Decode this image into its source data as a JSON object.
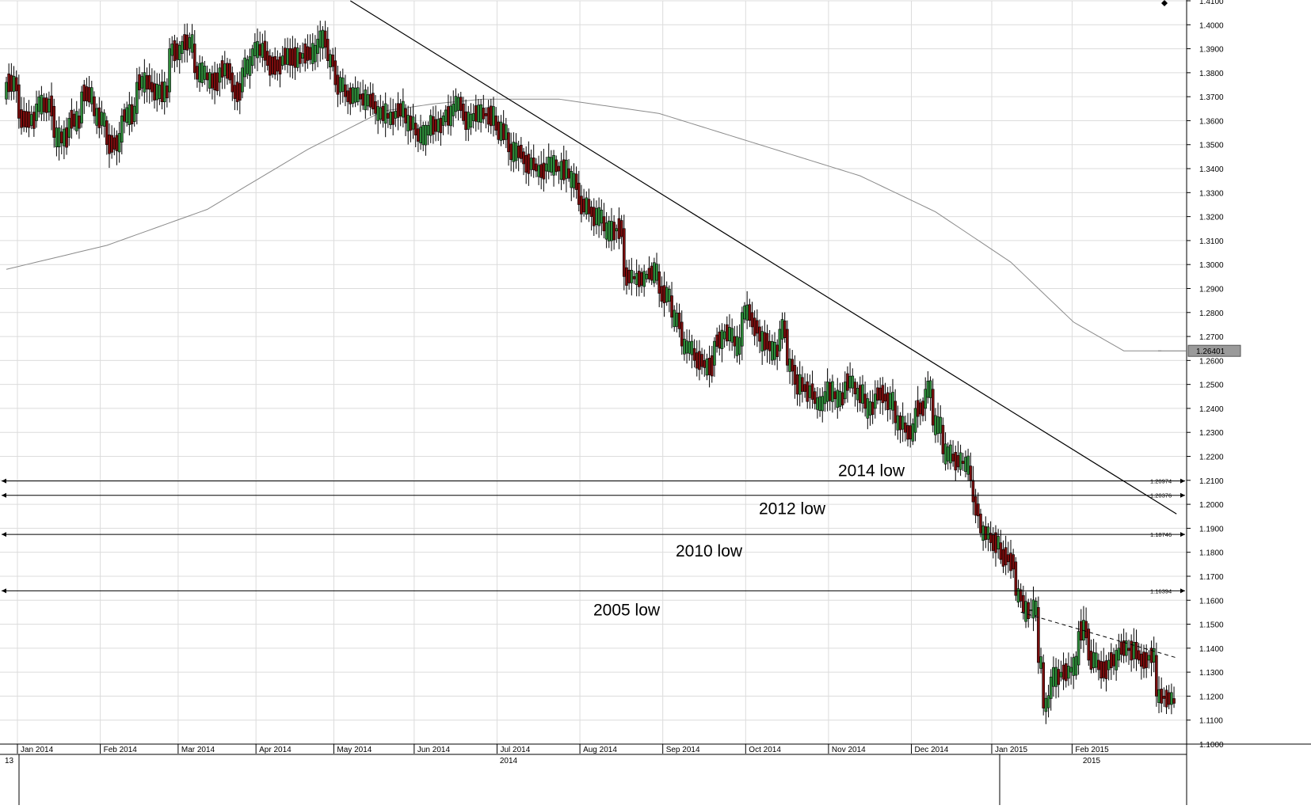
{
  "chart_data": {
    "type": "candlestick",
    "title": "",
    "xlabel": "",
    "ylabel": "",
    "ylim": [
      1.1,
      1.41
    ],
    "y_ticks": [
      1.41,
      1.4,
      1.39,
      1.38,
      1.37,
      1.36,
      1.35,
      1.34,
      1.33,
      1.32,
      1.31,
      1.3,
      1.29,
      1.28,
      1.27,
      1.26,
      1.25,
      1.24,
      1.23,
      1.22,
      1.21,
      1.2,
      1.19,
      1.18,
      1.17,
      1.16,
      1.15,
      1.14,
      1.13,
      1.12,
      1.11,
      1.1
    ],
    "y_tick_labels": [
      "1.4100",
      "1.4000",
      "1.3900",
      "1.3800",
      "1.3700",
      "1.3600",
      "1.3500",
      "1.3400",
      "1.3300",
      "1.3200",
      "1.3100",
      "1.3000",
      "1.2900",
      "1.2800",
      "1.2700",
      "1.2600",
      "1.2500",
      "1.2400",
      "1.2300",
      "1.2200",
      "1.2100",
      "1.2000",
      "1.1900",
      "1.1800",
      "1.1700",
      "1.1600",
      "1.1500",
      "1.1400",
      "1.1300",
      "1.1200",
      "1.1100",
      "1.1000"
    ],
    "x_month_labels": [
      "Jan 2014",
      "Feb 2014",
      "Mar 2014",
      "Apr 2014",
      "May 2014",
      "Jun 2014",
      "Jul 2014",
      "Aug 2014",
      "Sep 2014",
      "Oct 2014",
      "Nov 2014",
      "Dec 2014",
      "Jan 2015",
      "Feb 2015"
    ],
    "x_year_labels": [
      "13",
      "2014",
      "2015"
    ],
    "current_price_label": "1.26401",
    "horizontal_levels": [
      {
        "value": 1.20974,
        "label": "1.20974",
        "annotation": "2014 low"
      },
      {
        "value": 1.20376,
        "label": "1.20376",
        "annotation": "2012 low"
      },
      {
        "value": 1.18746,
        "label": "1.18746",
        "annotation": "2010 low"
      },
      {
        "value": 1.16394,
        "label": "1.16394",
        "annotation": "2005 low"
      }
    ],
    "anchors": [
      {
        "d": 0,
        "o": 1.369,
        "c": 1.376
      },
      {
        "d": 5,
        "o": 1.375,
        "c": 1.361
      },
      {
        "d": 12,
        "o": 1.36,
        "c": 1.367
      },
      {
        "d": 19,
        "o": 1.366,
        "c": 1.353
      },
      {
        "d": 25,
        "o": 1.353,
        "c": 1.361
      },
      {
        "d": 30,
        "o": 1.359,
        "c": 1.372
      },
      {
        "d": 35,
        "o": 1.37,
        "c": 1.362
      },
      {
        "d": 40,
        "o": 1.36,
        "c": 1.35
      },
      {
        "d": 46,
        "o": 1.351,
        "c": 1.362
      },
      {
        "d": 52,
        "o": 1.363,
        "c": 1.376
      },
      {
        "d": 58,
        "o": 1.376,
        "c": 1.372
      },
      {
        "d": 65,
        "o": 1.372,
        "c": 1.39
      },
      {
        "d": 70,
        "o": 1.388,
        "c": 1.393
      },
      {
        "d": 75,
        "o": 1.392,
        "c": 1.38
      },
      {
        "d": 80,
        "o": 1.38,
        "c": 1.377
      },
      {
        "d": 85,
        "o": 1.376,
        "c": 1.382
      },
      {
        "d": 90,
        "o": 1.38,
        "c": 1.372
      },
      {
        "d": 94,
        "o": 1.372,
        "c": 1.382
      },
      {
        "d": 98,
        "o": 1.383,
        "c": 1.39
      },
      {
        "d": 104,
        "o": 1.389,
        "c": 1.383
      },
      {
        "d": 110,
        "o": 1.383,
        "c": 1.387
      },
      {
        "d": 118,
        "o": 1.386,
        "c": 1.388
      },
      {
        "d": 124,
        "o": 1.388,
        "c": 1.394
      },
      {
        "d": 128,
        "o": 1.394,
        "c": 1.385
      },
      {
        "d": 131,
        "o": 1.385,
        "c": 1.375
      },
      {
        "d": 135,
        "o": 1.375,
        "c": 1.37
      },
      {
        "d": 141,
        "o": 1.371,
        "c": 1.369
      },
      {
        "d": 147,
        "o": 1.368,
        "c": 1.363
      },
      {
        "d": 152,
        "o": 1.363,
        "c": 1.361
      },
      {
        "d": 155,
        "o": 1.361,
        "c": 1.364
      },
      {
        "d": 159,
        "o": 1.365,
        "c": 1.359
      },
      {
        "d": 163,
        "o": 1.359,
        "c": 1.354
      },
      {
        "d": 168,
        "o": 1.354,
        "c": 1.358
      },
      {
        "d": 174,
        "o": 1.358,
        "c": 1.362
      },
      {
        "d": 178,
        "o": 1.362,
        "c": 1.367
      },
      {
        "d": 182,
        "o": 1.367,
        "c": 1.36
      },
      {
        "d": 186,
        "o": 1.36,
        "c": 1.363
      },
      {
        "d": 191,
        "o": 1.363,
        "c": 1.362
      },
      {
        "d": 195,
        "o": 1.362,
        "c": 1.356
      },
      {
        "d": 200,
        "o": 1.355,
        "c": 1.347
      },
      {
        "d": 206,
        "o": 1.347,
        "c": 1.342
      },
      {
        "d": 211,
        "o": 1.342,
        "c": 1.339
      },
      {
        "d": 215,
        "o": 1.339,
        "c": 1.342
      },
      {
        "d": 220,
        "o": 1.341,
        "c": 1.339
      },
      {
        "d": 224,
        "o": 1.34,
        "c": 1.336
      },
      {
        "d": 228,
        "o": 1.334,
        "c": 1.325
      },
      {
        "d": 233,
        "o": 1.324,
        "c": 1.32
      },
      {
        "d": 238,
        "o": 1.32,
        "c": 1.314
      },
      {
        "d": 243,
        "o": 1.314,
        "c": 1.315
      },
      {
        "d": 246,
        "o": 1.315,
        "c": 1.295
      },
      {
        "d": 250,
        "o": 1.295,
        "c": 1.294
      },
      {
        "d": 255,
        "o": 1.294,
        "c": 1.296
      },
      {
        "d": 260,
        "o": 1.297,
        "c": 1.288
      },
      {
        "d": 265,
        "o": 1.287,
        "c": 1.278
      },
      {
        "d": 269,
        "o": 1.276,
        "c": 1.266
      },
      {
        "d": 274,
        "o": 1.265,
        "c": 1.26
      },
      {
        "d": 278,
        "o": 1.26,
        "c": 1.257
      },
      {
        "d": 282,
        "o": 1.258,
        "c": 1.268
      },
      {
        "d": 286,
        "o": 1.269,
        "c": 1.272
      },
      {
        "d": 290,
        "o": 1.27,
        "c": 1.266
      },
      {
        "d": 293,
        "o": 1.266,
        "c": 1.28
      },
      {
        "d": 297,
        "o": 1.28,
        "c": 1.274
      },
      {
        "d": 300,
        "o": 1.274,
        "c": 1.268
      },
      {
        "d": 304,
        "o": 1.268,
        "c": 1.264
      },
      {
        "d": 308,
        "o": 1.264,
        "c": 1.273
      },
      {
        "d": 311,
        "o": 1.273,
        "c": 1.258
      },
      {
        "d": 314,
        "o": 1.258,
        "c": 1.25
      },
      {
        "d": 318,
        "o": 1.25,
        "c": 1.247
      },
      {
        "d": 322,
        "o": 1.247,
        "c": 1.242
      },
      {
        "d": 326,
        "o": 1.242,
        "c": 1.247
      },
      {
        "d": 330,
        "o": 1.247,
        "c": 1.244
      },
      {
        "d": 334,
        "o": 1.244,
        "c": 1.251
      },
      {
        "d": 338,
        "o": 1.251,
        "c": 1.246
      },
      {
        "d": 342,
        "o": 1.246,
        "c": 1.24
      },
      {
        "d": 346,
        "o": 1.24,
        "c": 1.246
      },
      {
        "d": 350,
        "o": 1.246,
        "c": 1.243
      },
      {
        "d": 354,
        "o": 1.243,
        "c": 1.234
      },
      {
        "d": 358,
        "o": 1.234,
        "c": 1.23
      },
      {
        "d": 362,
        "o": 1.23,
        "c": 1.24
      },
      {
        "d": 366,
        "o": 1.24,
        "c": 1.248
      },
      {
        "d": 369,
        "o": 1.248,
        "c": 1.233
      },
      {
        "d": 373,
        "o": 1.233,
        "c": 1.221
      },
      {
        "d": 377,
        "o": 1.221,
        "c": 1.218
      },
      {
        "d": 381,
        "o": 1.218,
        "c": 1.217
      },
      {
        "d": 384,
        "o": 1.216,
        "c": 1.21
      },
      {
        "d": 385,
        "o": 1.21,
        "c": 1.201
      },
      {
        "d": 388,
        "o": 1.196,
        "c": 1.188
      },
      {
        "d": 392,
        "o": 1.188,
        "c": 1.184
      },
      {
        "d": 396,
        "o": 1.184,
        "c": 1.177
      },
      {
        "d": 399,
        "o": 1.179,
        "c": 1.176
      },
      {
        "d": 402,
        "o": 1.176,
        "c": 1.162
      },
      {
        "d": 405,
        "o": 1.162,
        "c": 1.155
      },
      {
        "d": 408,
        "o": 1.156,
        "c": 1.156
      },
      {
        "d": 411,
        "o": 1.157,
        "c": 1.134
      },
      {
        "d": 413,
        "o": 1.134,
        "c": 1.115
      },
      {
        "d": 416,
        "o": 1.119,
        "c": 1.128
      },
      {
        "d": 420,
        "o": 1.128,
        "c": 1.13
      },
      {
        "d": 424,
        "o": 1.13,
        "c": 1.132
      },
      {
        "d": 427,
        "o": 1.133,
        "c": 1.147
      },
      {
        "d": 431,
        "o": 1.148,
        "c": 1.135
      },
      {
        "d": 435,
        "o": 1.135,
        "c": 1.131
      },
      {
        "d": 439,
        "o": 1.131,
        "c": 1.135
      },
      {
        "d": 443,
        "o": 1.135,
        "c": 1.14
      },
      {
        "d": 447,
        "o": 1.14,
        "c": 1.139
      },
      {
        "d": 451,
        "o": 1.139,
        "c": 1.135
      },
      {
        "d": 455,
        "o": 1.135,
        "c": 1.137
      },
      {
        "d": 458,
        "o": 1.137,
        "c": 1.12
      },
      {
        "d": 461,
        "o": 1.12,
        "c": 1.119
      },
      {
        "d": 465,
        "o": 1.119,
        "c": 1.117
      }
    ],
    "moving_average": [
      {
        "d": 0,
        "v": 1.298
      },
      {
        "d": 40,
        "v": 1.308
      },
      {
        "d": 80,
        "v": 1.323
      },
      {
        "d": 120,
        "v": 1.348
      },
      {
        "d": 150,
        "v": 1.364
      },
      {
        "d": 170,
        "v": 1.367
      },
      {
        "d": 190,
        "v": 1.369
      },
      {
        "d": 220,
        "v": 1.369
      },
      {
        "d": 260,
        "v": 1.363
      },
      {
        "d": 300,
        "v": 1.35
      },
      {
        "d": 340,
        "v": 1.337
      },
      {
        "d": 370,
        "v": 1.322
      },
      {
        "d": 400,
        "v": 1.301
      },
      {
        "d": 425,
        "v": 1.276
      },
      {
        "d": 445,
        "v": 1.264
      },
      {
        "d": 460,
        "v": 1.264
      }
    ],
    "trendline": {
      "d1": 137,
      "v1": 1.41,
      "d2": 466,
      "v2": 1.196
    },
    "dashed_trendline": {
      "d1": 404,
      "v1": 1.155,
      "d2": 466,
      "v2": 1.136
    }
  }
}
